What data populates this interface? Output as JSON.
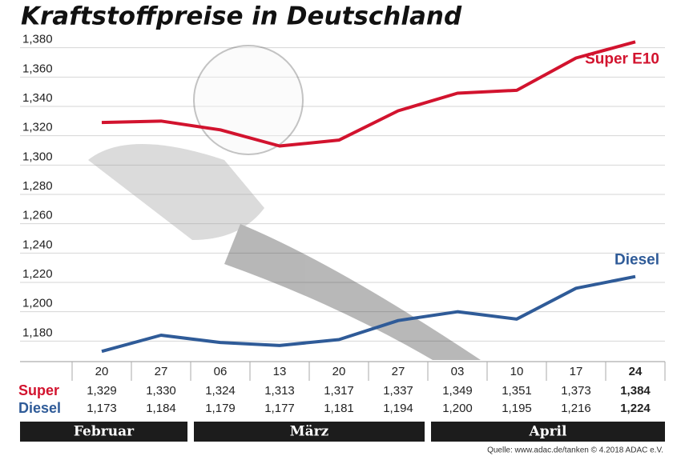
{
  "chart_data": {
    "type": "line",
    "title": "Kraftstoffpreise in Deutschland",
    "categories": [
      "20",
      "27",
      "06",
      "13",
      "20",
      "27",
      "03",
      "10",
      "17",
      "24"
    ],
    "months": [
      "Februar",
      "März",
      "April"
    ],
    "series": [
      {
        "name": "Super E10",
        "row_label": "Super",
        "color": "#d2132e",
        "values": [
          1329,
          1330,
          1324,
          1313,
          1317,
          1337,
          1349,
          1351,
          1373,
          1384
        ],
        "value_labels": [
          "1,329",
          "1,330",
          "1,324",
          "1,313",
          "1,317",
          "1,337",
          "1,349",
          "1,351",
          "1,373",
          "1,384"
        ]
      },
      {
        "name": "Diesel",
        "row_label": "Diesel",
        "color": "#2f5b98",
        "values": [
          1173,
          1184,
          1179,
          1177,
          1181,
          1194,
          1200,
          1195,
          1216,
          1224
        ],
        "value_labels": [
          "1,173",
          "1,184",
          "1,179",
          "1,177",
          "1,181",
          "1,194",
          "1,200",
          "1,195",
          "1,216",
          "1,224"
        ]
      }
    ],
    "ylim": [
      1166,
      1388
    ],
    "yticks": [
      {
        "value": 1180,
        "label": "1,180"
      },
      {
        "value": 1200,
        "label": "1,200"
      },
      {
        "value": 1220,
        "label": "1,220"
      },
      {
        "value": 1240,
        "label": "1,240"
      },
      {
        "value": 1260,
        "label": "1,260"
      },
      {
        "value": 1280,
        "label": "1,280"
      },
      {
        "value": 1300,
        "label": "1,300"
      },
      {
        "value": 1320,
        "label": "1,320"
      },
      {
        "value": 1340,
        "label": "1,340"
      },
      {
        "value": 1360,
        "label": "1,360"
      },
      {
        "value": 1380,
        "label": "1,380"
      }
    ],
    "grid": true,
    "source": "Quelle: www.adac.de/tanken   © 4.2018  ADAC e.V."
  }
}
